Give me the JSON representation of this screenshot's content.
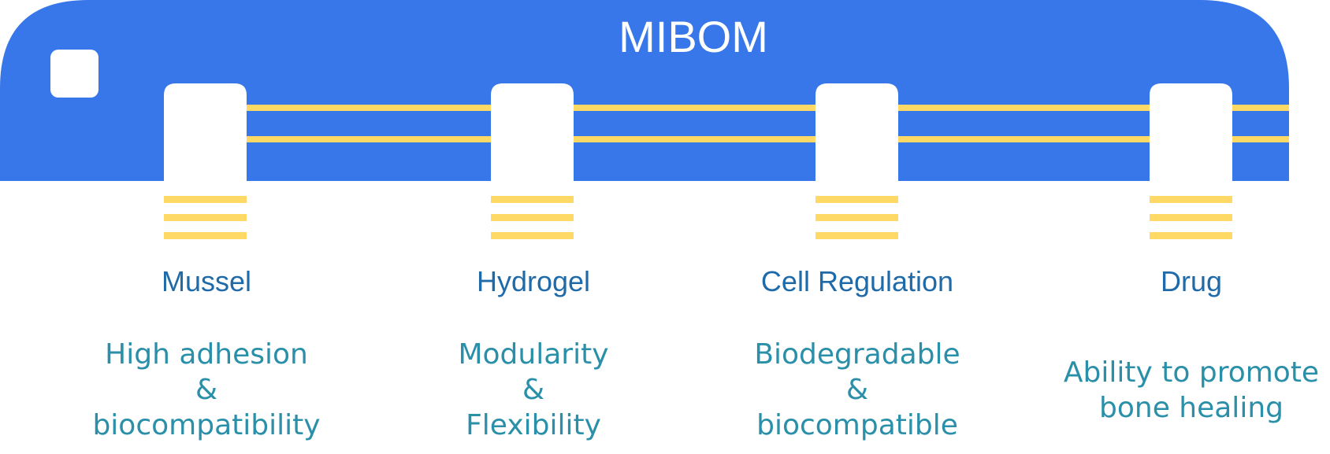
{
  "title": "MIBOM",
  "colors": {
    "banner": "#3877ea",
    "stripe": "#ffd966",
    "white": "#ffffff",
    "heading": "#1f6aa8",
    "description": "#2a8fa8"
  },
  "modules": [
    {
      "name": "Mussel",
      "description": "High adhesion\n&\nbiocompatibility"
    },
    {
      "name": "Hydrogel",
      "description": "Modularity\n&\nFlexibility"
    },
    {
      "name": "Cell Regulation",
      "description": "Biodegradable\n&\nbiocompatible"
    },
    {
      "name": "Drug",
      "description": "Ability to promote\nbone healing"
    }
  ]
}
